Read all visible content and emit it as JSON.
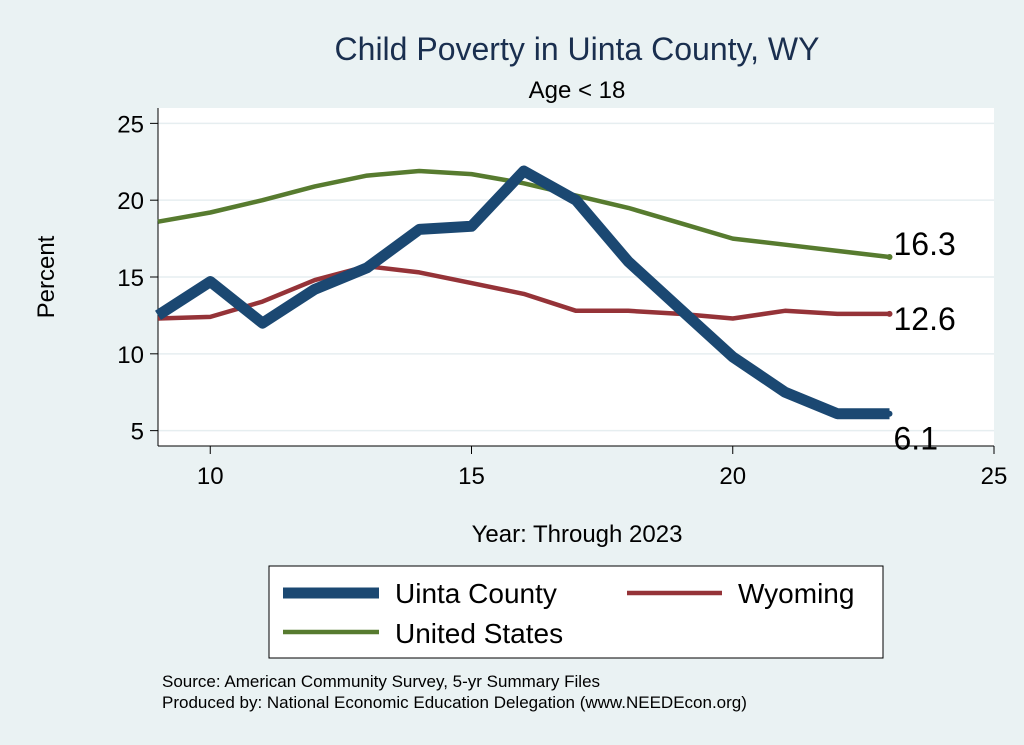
{
  "chart_data": {
    "type": "line",
    "title": "Child Poverty in Uinta County, WY",
    "subtitle": "Age < 18",
    "xlabel": "Year: Through 2023",
    "ylabel": "Percent",
    "xlim": [
      9,
      25
    ],
    "ylim": [
      4,
      26
    ],
    "xticks": [
      10,
      15,
      20,
      25
    ],
    "yticks": [
      5,
      10,
      15,
      20,
      25
    ],
    "grid": true,
    "legend_position": "bottom",
    "x": [
      9,
      10,
      11,
      12,
      13,
      14,
      15,
      16,
      17,
      18,
      19,
      20,
      21,
      22,
      23
    ],
    "series": [
      {
        "name": "Uinta County",
        "color": "#1b4872",
        "width": "thick",
        "values": [
          12.5,
          14.7,
          12.0,
          14.2,
          15.6,
          18.1,
          18.3,
          21.9,
          20.0,
          16.0,
          12.9,
          9.8,
          7.5,
          6.1,
          6.1
        ],
        "end_label": "6.1"
      },
      {
        "name": "Wyoming",
        "color": "#953338",
        "width": "medium",
        "values": [
          12.3,
          12.4,
          13.4,
          14.8,
          15.7,
          15.3,
          14.6,
          13.9,
          12.8,
          12.8,
          12.6,
          12.3,
          12.8,
          12.6,
          12.6
        ],
        "end_label": "12.6"
      },
      {
        "name": "United States",
        "color": "#577b2f",
        "width": "medium",
        "values": [
          18.6,
          19.2,
          20.0,
          20.9,
          21.6,
          21.9,
          21.7,
          21.1,
          20.3,
          19.5,
          18.5,
          17.5,
          17.1,
          16.7,
          16.3
        ],
        "end_label": "16.3"
      }
    ],
    "notes": [
      "Source: American Community Survey, 5-yr Summary Files",
      "Produced by: National Economic Education Delegation (www.NEEDEcon.org)"
    ]
  }
}
